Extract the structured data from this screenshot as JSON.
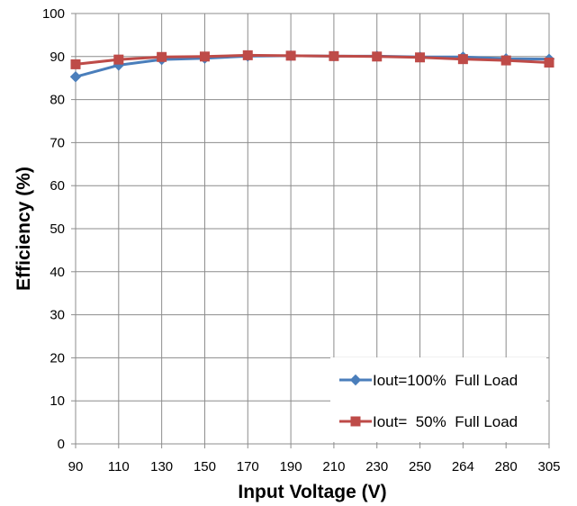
{
  "chart_data": {
    "type": "line",
    "title": "",
    "xlabel": "Input Voltage (V)",
    "ylabel": "Efficiency (%)",
    "categories": [
      "90",
      "110",
      "130",
      "150",
      "170",
      "190",
      "210",
      "230",
      "250",
      "264",
      "280",
      "305"
    ],
    "ylim": [
      0,
      100
    ],
    "yticks": [
      0,
      10,
      20,
      30,
      40,
      50,
      60,
      70,
      80,
      90,
      100
    ],
    "grid": true,
    "legend_position": "bottom-right",
    "series": [
      {
        "name": "Iout=100%  Full Load",
        "marker": "diamond",
        "color": "#4a7ebb",
        "values": [
          85.3,
          88.0,
          89.3,
          89.6,
          90.1,
          90.2,
          90.1,
          90.1,
          89.9,
          89.9,
          89.5,
          89.4
        ]
      },
      {
        "name": "Iout=  50%  Full Load",
        "marker": "square",
        "color": "#be4b48",
        "values": [
          88.2,
          89.3,
          89.9,
          90.0,
          90.3,
          90.2,
          90.1,
          90.0,
          89.8,
          89.4,
          89.1,
          88.6
        ]
      }
    ]
  }
}
